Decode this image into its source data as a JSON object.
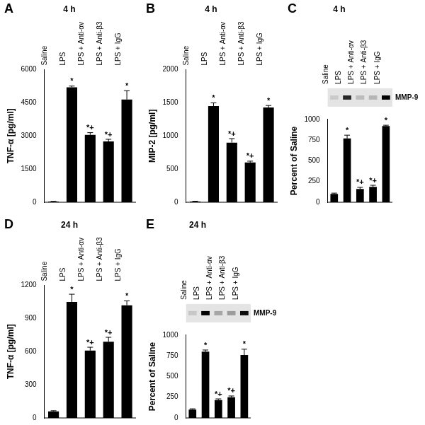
{
  "chart_data": [
    {
      "type": "bar",
      "panel": "A",
      "title": "4 h",
      "categories": [
        "Saline",
        "LPS",
        "LPS + Anti-αv",
        "LPS + Anti-β3",
        "LPS + IgG"
      ],
      "values": [
        30,
        5200,
        3050,
        2750,
        4650
      ],
      "errors": [
        10,
        60,
        100,
        100,
        400
      ],
      "significance": [
        null,
        "*",
        "*+",
        "*+",
        "*"
      ],
      "y_label": "TNF-α [pg/ml]",
      "ylim": [
        0,
        6000
      ],
      "yticks": [
        0,
        1500,
        3000,
        4500,
        6000
      ],
      "color": "#000000",
      "grid": false
    },
    {
      "type": "bar",
      "panel": "B",
      "title": "4 h",
      "categories": [
        "Saline",
        "LPS",
        "LPS + Anti-αv",
        "LPS + Anti-β3",
        "LPS + IgG"
      ],
      "values": [
        10,
        1450,
        900,
        600,
        1430
      ],
      "errors": [
        5,
        50,
        60,
        20,
        30
      ],
      "significance": [
        null,
        "*",
        "*+",
        "*+",
        "*"
      ],
      "y_label": "MIP-2 [pg/ml]",
      "ylim": [
        0,
        2000
      ],
      "yticks": [
        0,
        500,
        1000,
        1500,
        2000
      ],
      "color": "#000000",
      "grid": false
    },
    {
      "type": "bar",
      "panel": "C",
      "title": "4 h",
      "categories": [
        "Saline",
        "LPS",
        "LPS + Anti-αv",
        "LPS + Anti-β3",
        "LPS + IgG"
      ],
      "values": [
        100,
        770,
        160,
        185,
        920
      ],
      "errors": [
        10,
        40,
        20,
        20,
        10
      ],
      "significance": [
        null,
        "*",
        "*+",
        "*+",
        "*"
      ],
      "y_label": "Percent of Saline",
      "ylim": [
        0,
        1000
      ],
      "yticks": [
        0,
        250,
        500,
        750,
        1000
      ],
      "gel_label": "MMP-9",
      "color": "#000000",
      "grid": false
    },
    {
      "type": "bar",
      "panel": "D",
      "title": "24 h",
      "categories": [
        "Saline",
        "LPS",
        "LPS + Anti-αv",
        "LPS + Anti-β3",
        "LPS + IgG"
      ],
      "values": [
        60,
        1050,
        610,
        690,
        1020
      ],
      "errors": [
        5,
        70,
        30,
        40,
        40
      ],
      "significance": [
        null,
        "*",
        "*+",
        "*+",
        "*"
      ],
      "y_label": "TNF-α [pg/ml]",
      "ylim": [
        0,
        1200
      ],
      "yticks": [
        0,
        300,
        600,
        900,
        1200
      ],
      "color": "#000000",
      "grid": false
    },
    {
      "type": "bar",
      "panel": "E",
      "title": "24 h",
      "categories": [
        "Saline",
        "LPS",
        "LPS + Anti-αv",
        "LPS + Anti-β3",
        "LPS + IgG"
      ],
      "values": [
        100,
        800,
        215,
        250,
        760
      ],
      "errors": [
        10,
        20,
        15,
        15,
        70
      ],
      "significance": [
        null,
        "*",
        "*+",
        "*+",
        "*"
      ],
      "y_label": "Percent of Saline",
      "ylim": [
        0,
        1000
      ],
      "yticks": [
        0,
        250,
        500,
        750,
        1000
      ],
      "gel_label": "MMP-9",
      "color": "#000000",
      "grid": false
    }
  ]
}
